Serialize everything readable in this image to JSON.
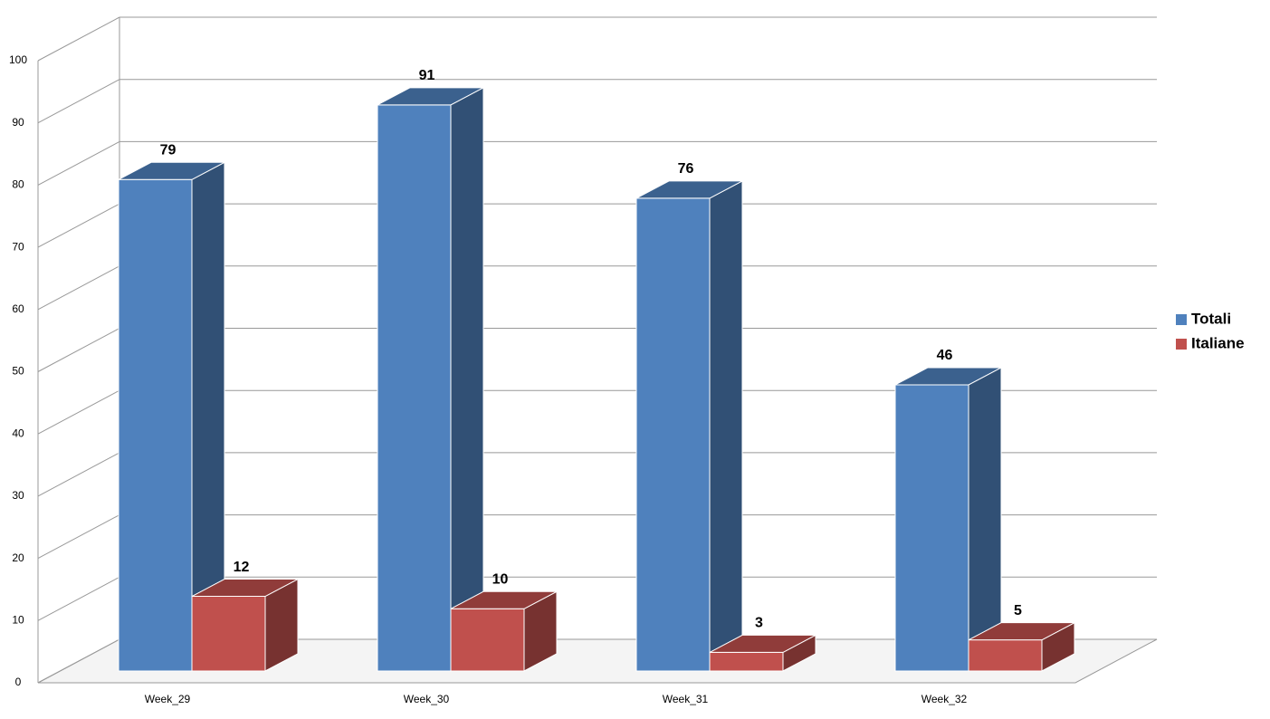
{
  "chart_data": {
    "type": "bar",
    "categories": [
      "Week_29",
      "Week_30",
      "Week_31",
      "Week_32"
    ],
    "series": [
      {
        "name": "Totali",
        "color": "#4f81bd",
        "values": [
          79,
          91,
          76,
          46
        ]
      },
      {
        "name": "Italiane",
        "color": "#c0504d",
        "values": [
          12,
          10,
          3,
          5
        ]
      }
    ],
    "ylim": [
      0,
      100
    ],
    "yticks": [
      0,
      10,
      20,
      30,
      40,
      50,
      60,
      70,
      80,
      90,
      100
    ],
    "grid": true,
    "legend": "right"
  }
}
